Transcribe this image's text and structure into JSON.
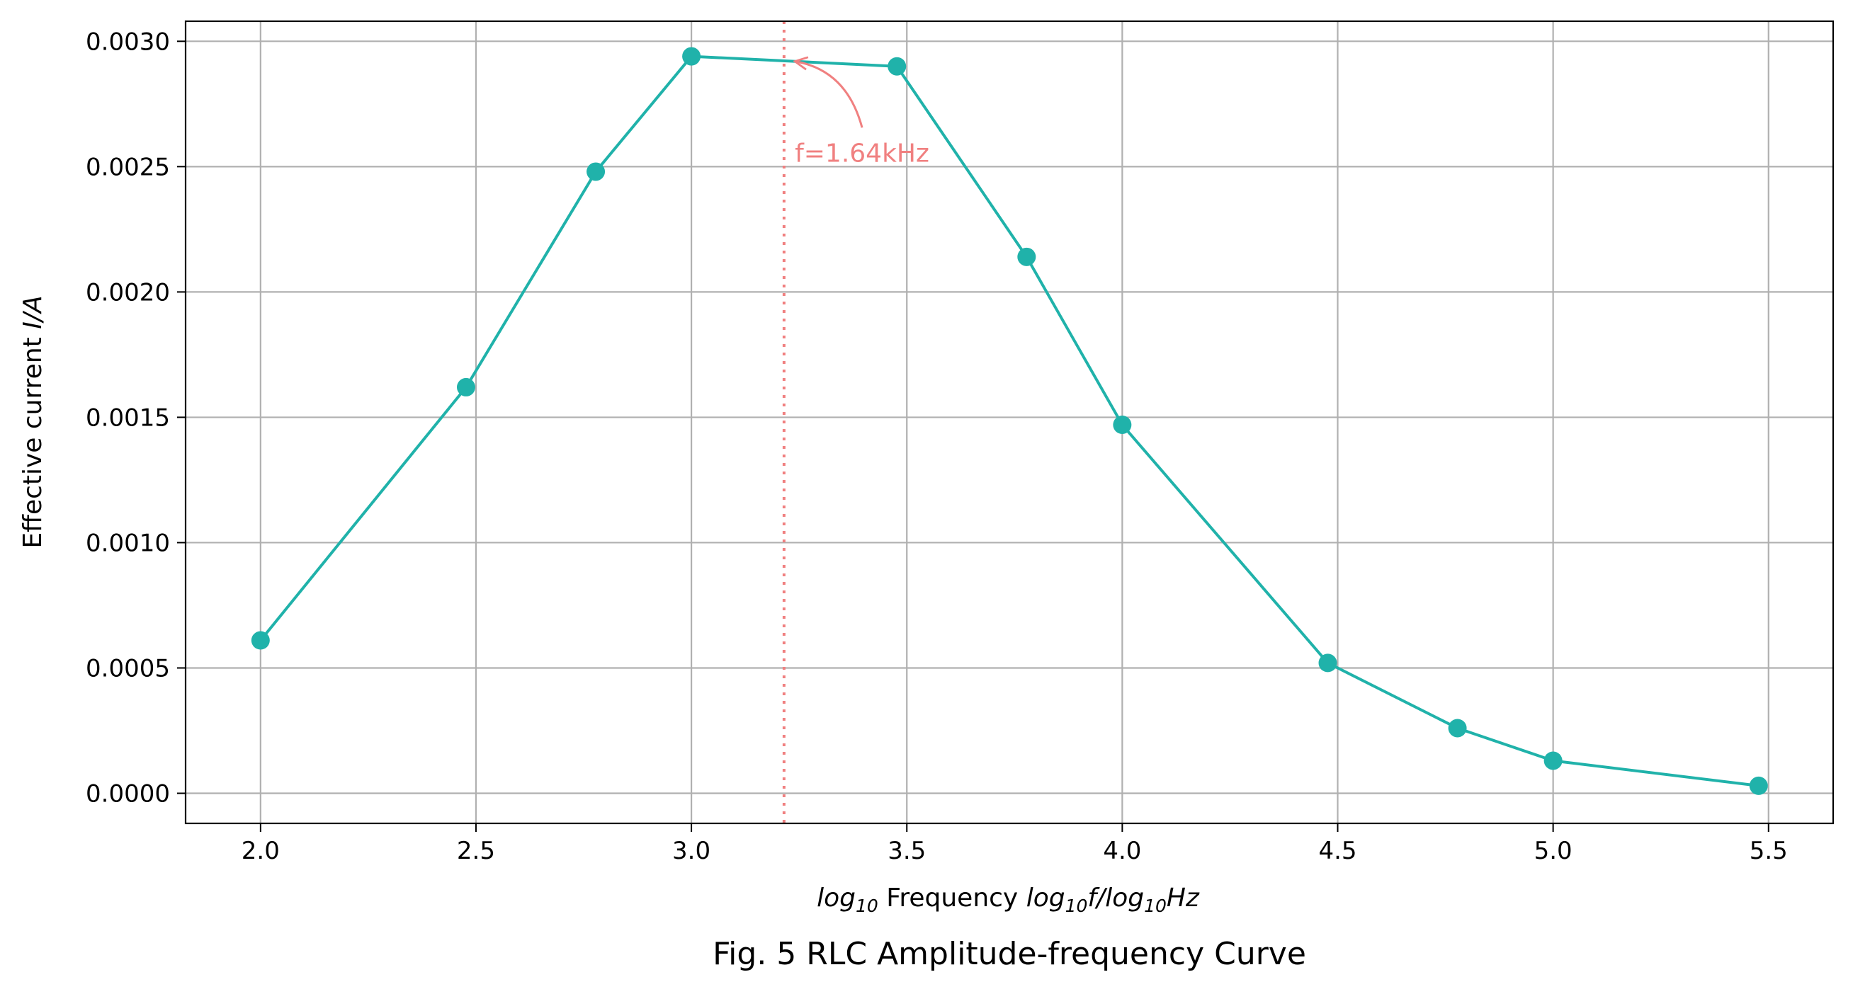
{
  "chart_data": {
    "type": "line",
    "title": "",
    "caption": "Fig. 5 RLC Amplitude-frequency Curve",
    "xlabel": {
      "prefix_log": "log",
      "prefix_sub": "10",
      "word": " Frequency ",
      "f_log": "log",
      "f_sub": "10",
      "f_var": "f",
      "slash": "/",
      "hz_log": "log",
      "hz_sub": "10",
      "hz_unit": "Hz"
    },
    "ylabel": {
      "text": "Effective current ",
      "var": "I",
      "slash": "/",
      "unit": "A"
    },
    "xlim": [
      1.826,
      5.65
    ],
    "ylim": [
      -0.00012,
      0.00308
    ],
    "xticks": [
      2.0,
      2.5,
      3.0,
      3.5,
      4.0,
      4.5,
      5.0,
      5.5
    ],
    "xtick_labels": [
      "2.0",
      "2.5",
      "3.0",
      "3.5",
      "4.0",
      "4.5",
      "5.0",
      "5.5"
    ],
    "yticks": [
      0.0,
      0.0005,
      0.001,
      0.0015,
      0.002,
      0.0025,
      0.003
    ],
    "ytick_labels": [
      "0.0000",
      "0.0005",
      "0.0010",
      "0.0015",
      "0.0020",
      "0.0025",
      "0.0030"
    ],
    "grid": true,
    "series": [
      {
        "color": "#20b2aa",
        "marker": "circle",
        "x": [
          2.0,
          2.477,
          2.778,
          3.0,
          3.477,
          3.778,
          4.0,
          4.477,
          4.778,
          5.0,
          5.477
        ],
        "y": [
          0.00061,
          0.00162,
          0.00248,
          0.00294,
          0.0029,
          0.00214,
          0.00147,
          0.00052,
          0.00026,
          0.00013,
          3e-05
        ]
      }
    ],
    "vline": {
      "x": 3.215,
      "color": "#f08080",
      "style": "dotted"
    },
    "annotation": {
      "text": "f=1.64kHz",
      "color": "#f08080",
      "point": [
        3.24,
        0.00292
      ],
      "text_pos": [
        3.24,
        0.00252
      ]
    },
    "colors": {
      "grid": "#b0b0b0",
      "axes": "#000000",
      "background": "#ffffff"
    }
  }
}
